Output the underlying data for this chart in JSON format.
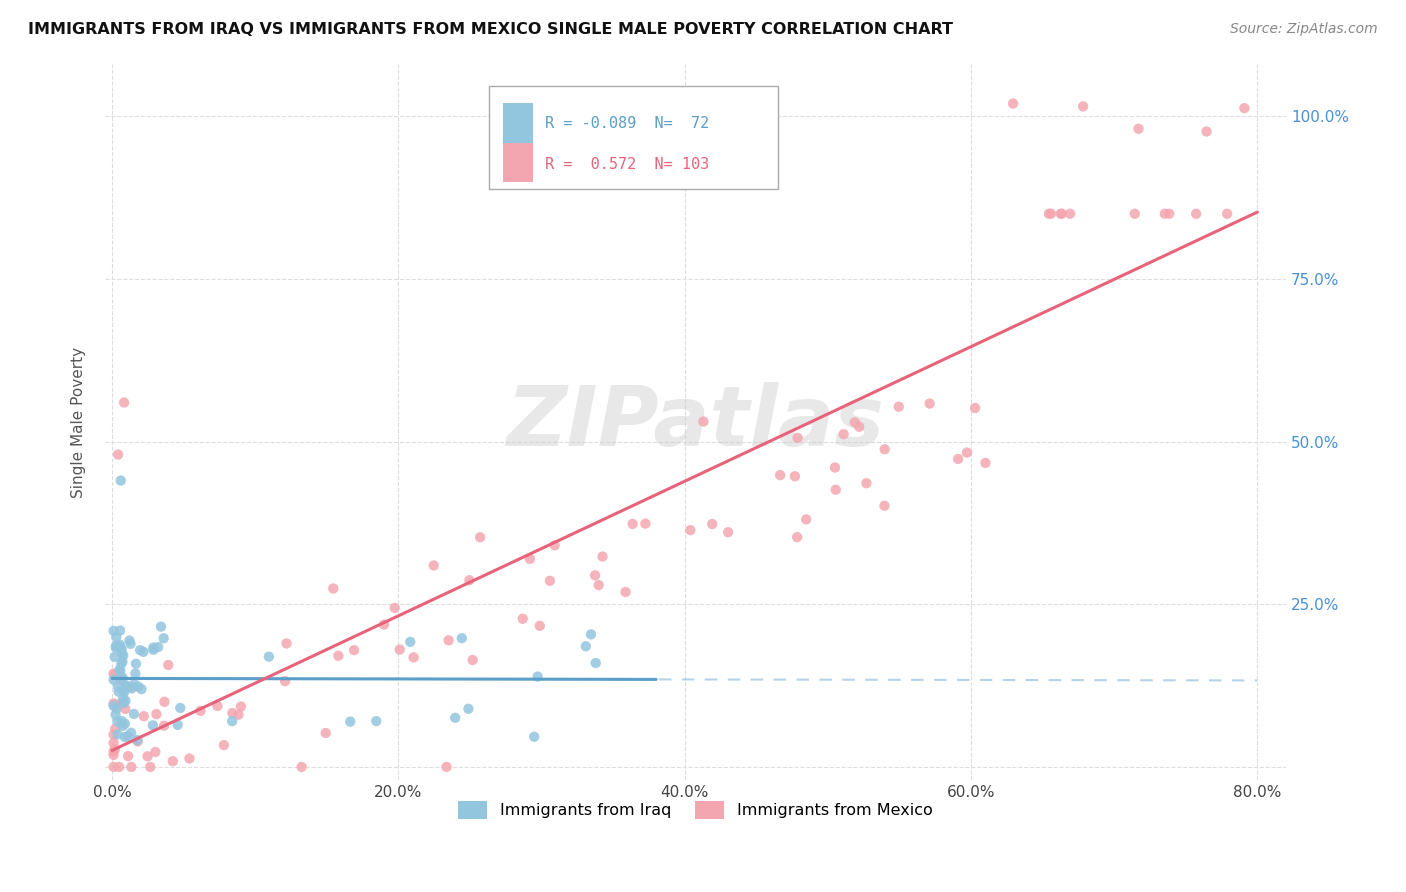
{
  "title": "IMMIGRANTS FROM IRAQ VS IMMIGRANTS FROM MEXICO SINGLE MALE POVERTY CORRELATION CHART",
  "source": "Source: ZipAtlas.com",
  "ylabel": "Single Male Poverty",
  "xlim": [
    -0.005,
    0.82
  ],
  "ylim": [
    -0.02,
    1.08
  ],
  "xticks": [
    0.0,
    0.2,
    0.4,
    0.6,
    0.8
  ],
  "xticklabels": [
    "0.0%",
    "20.0%",
    "40.0%",
    "60.0%",
    "80.0%"
  ],
  "yticks": [
    0.0,
    0.25,
    0.5,
    0.75,
    1.0
  ],
  "yticklabels_right": [
    "",
    "25.0%",
    "50.0%",
    "75.0%",
    "100.0%"
  ],
  "iraq_color": "#92c5de",
  "mexico_color": "#f4a6b0",
  "iraq_line_color": "#5b9ec9",
  "mexico_line_color": "#e8637a",
  "iraq_R": -0.089,
  "iraq_N": 72,
  "mexico_R": 0.572,
  "mexico_N": 103,
  "watermark": "ZIPatlas",
  "grid_color": "#dddddd",
  "background_color": "#ffffff",
  "right_axis_color": "#4a90d9",
  "legend_iraq_text_color": "#5b9ec9",
  "legend_mexico_text_color": "#e8637a"
}
